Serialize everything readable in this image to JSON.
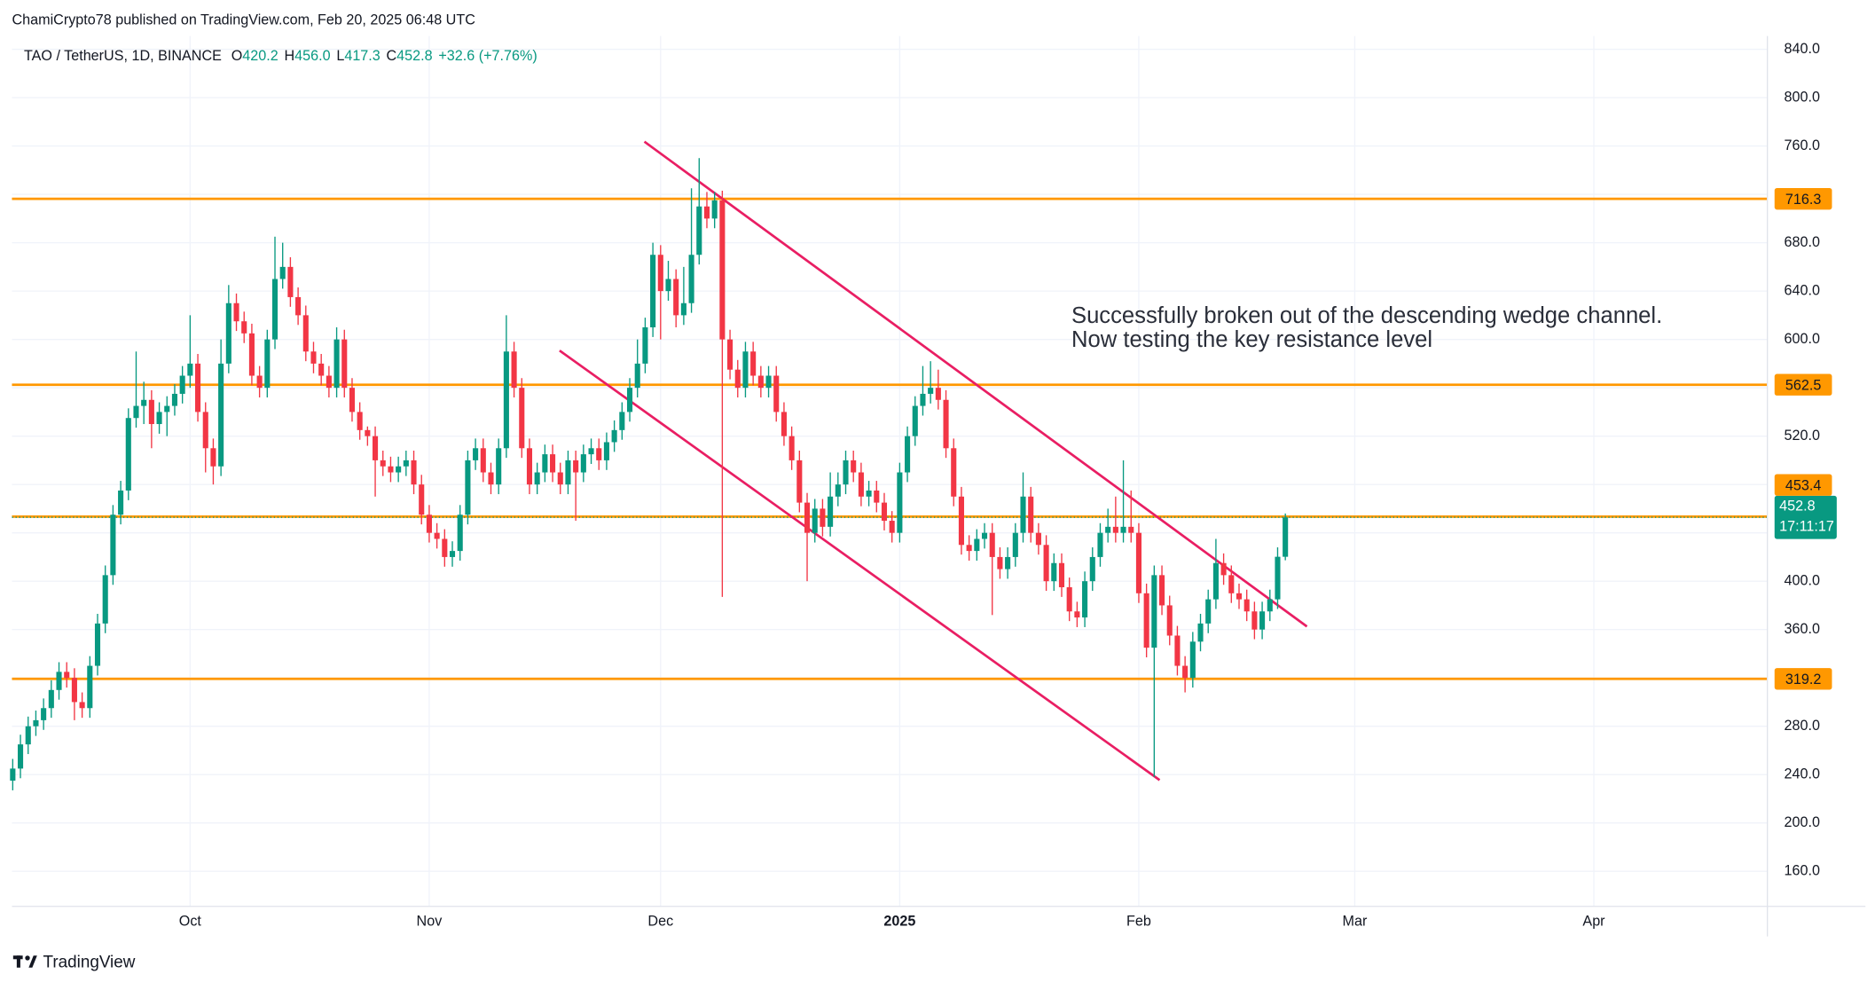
{
  "header": {
    "publisher": "ChamiCrypto78 published on TradingView.com, Feb 20, 2025 06:48 UTC"
  },
  "footer": {
    "brand": "TradingView"
  },
  "chart_data": {
    "type": "candlestick",
    "symbol": "TAO / TetherUS, 1D, BINANCE",
    "legend": [
      {
        "key": "O",
        "value": "420.2"
      },
      {
        "key": "H",
        "value": "456.0"
      },
      {
        "key": "L",
        "value": "417.3"
      },
      {
        "key": "C",
        "value": "452.8"
      }
    ],
    "change": "+32.6 (+7.76%)",
    "legend_position": "top-left",
    "annotation": [
      "Successfully broken out of the descending wedge channel.",
      "Now testing the key resistance level"
    ],
    "up_color": "#089981",
    "down_color": "#f23645",
    "grid": true,
    "xlim": [
      -0.1,
      227.5
    ],
    "xticks": [
      {
        "value": 23,
        "label": "Oct"
      },
      {
        "value": 54,
        "label": "Nov"
      },
      {
        "value": 84,
        "label": "Dec"
      },
      {
        "value": 115,
        "label": "2025"
      },
      {
        "value": 146,
        "label": "Feb"
      },
      {
        "value": 174,
        "label": "Mar"
      },
      {
        "value": 205,
        "label": "Apr"
      }
    ],
    "ylim": [
      131,
      851
    ],
    "yticks": [
      {
        "value": 160,
        "label": "160.0"
      },
      {
        "value": 200,
        "label": "200.0"
      },
      {
        "value": 240,
        "label": "240.0"
      },
      {
        "value": 280,
        "label": "280.0"
      },
      {
        "value": 320,
        "label": "320.0"
      },
      {
        "value": 360,
        "label": "360.0"
      },
      {
        "value": 400,
        "label": "400.0"
      },
      {
        "value": 440,
        "label": "440.0"
      },
      {
        "value": 480,
        "label": "480.0"
      },
      {
        "value": 520,
        "label": "520.0"
      },
      {
        "value": 560,
        "label": "560.0"
      },
      {
        "value": 600,
        "label": "600.0"
      },
      {
        "value": 640,
        "label": "640.0"
      },
      {
        "value": 680,
        "label": "680.0"
      },
      {
        "value": 720,
        "label": "720.0"
      },
      {
        "value": 760,
        "label": "760.0"
      },
      {
        "value": 800,
        "label": "800.0"
      },
      {
        "value": 840,
        "label": "840.0"
      }
    ],
    "levels": [
      {
        "value": 716.3,
        "color": "#ff9800"
      },
      {
        "value": 562.5,
        "color": "#ff9800"
      },
      {
        "value": 453.4,
        "color": "#ff9800"
      },
      {
        "value": 319.2,
        "color": "#ff9800"
      }
    ],
    "last_price": {
      "value": 452.8,
      "countdown": "17:11:17",
      "color": "#089981"
    },
    "trendlines": [
      {
        "points": [
          [
            81.9,
            763.6
          ],
          [
            167.8,
            362.5
          ]
        ],
        "color": "#e91e63"
      },
      {
        "points": [
          [
            70.9,
            590.8
          ],
          [
            148.7,
            235.5
          ]
        ],
        "color": "#e91e63"
      }
    ],
    "x": [
      0,
      1,
      2,
      3,
      4,
      5,
      6,
      7,
      8,
      9,
      10,
      11,
      12,
      13,
      14,
      15,
      16,
      17,
      18,
      19,
      20,
      21,
      22,
      23,
      24,
      25,
      26,
      27,
      28,
      29,
      30,
      31,
      32,
      33,
      34,
      35,
      36,
      37,
      38,
      39,
      40,
      41,
      42,
      43,
      44,
      45,
      46,
      47,
      48,
      49,
      50,
      51,
      52,
      53,
      54,
      55,
      56,
      57,
      58,
      59,
      60,
      61,
      62,
      63,
      64,
      65,
      66,
      67,
      68,
      69,
      70,
      71,
      72,
      73,
      74,
      75,
      76,
      77,
      78,
      79,
      80,
      81,
      82,
      83,
      84,
      85,
      86,
      87,
      88,
      89,
      90,
      91,
      92,
      93,
      94,
      95,
      96,
      97,
      98,
      99,
      100,
      101,
      102,
      103,
      104,
      105,
      106,
      107,
      108,
      109,
      110,
      111,
      112,
      113,
      114,
      115,
      116,
      117,
      118,
      119,
      120,
      121,
      122,
      123,
      124,
      125,
      126,
      127,
      128,
      129,
      130,
      131,
      132,
      133,
      134,
      135,
      136,
      137,
      138,
      139,
      140,
      141,
      142,
      143,
      144,
      145,
      146,
      147,
      148,
      149,
      150,
      151,
      152,
      153,
      154,
      155,
      156,
      157,
      158,
      159,
      160,
      161,
      162,
      163,
      164,
      165
    ],
    "open": [
      235,
      245,
      265,
      280,
      285,
      295,
      310,
      325,
      320,
      300,
      295,
      330,
      365,
      405,
      455,
      475,
      535,
      545,
      550,
      530,
      540,
      545,
      555,
      570,
      580,
      540,
      510,
      495,
      580,
      630,
      615,
      605,
      570,
      560,
      600,
      650,
      660,
      635,
      620,
      590,
      580,
      570,
      560,
      600,
      560,
      540,
      525,
      520,
      500,
      495,
      490,
      495,
      500,
      480,
      455,
      440,
      435,
      420,
      425,
      455,
      500,
      510,
      490,
      480,
      510,
      590,
      560,
      510,
      480,
      490,
      505,
      490,
      480,
      500,
      490,
      505,
      510,
      500,
      515,
      525,
      540,
      560,
      580,
      610,
      670,
      640,
      650,
      620,
      630,
      670,
      710,
      700,
      715,
      600,
      575,
      560,
      590,
      570,
      560,
      570,
      540,
      520,
      500,
      465,
      440,
      460,
      445,
      470,
      480,
      500,
      490,
      470,
      475,
      465,
      450,
      440,
      490,
      520,
      545,
      555,
      560,
      550,
      510,
      470,
      430,
      425,
      435,
      440,
      420,
      410,
      420,
      440,
      470,
      440,
      430,
      400,
      415,
      395,
      375,
      370,
      400,
      420,
      440,
      445,
      440,
      445,
      440,
      390,
      345,
      405,
      380,
      355,
      330,
      320,
      350,
      365,
      385,
      415,
      405,
      390,
      385,
      375,
      360,
      375,
      385,
      420.2
    ],
    "high": [
      253,
      273,
      288,
      293,
      303,
      318,
      333,
      333,
      328,
      308,
      338,
      373,
      413,
      463,
      483,
      543,
      590,
      565,
      558,
      548,
      553,
      563,
      578,
      620,
      588,
      548,
      518,
      600,
      645,
      638,
      623,
      613,
      578,
      608,
      685,
      680,
      668,
      643,
      628,
      598,
      588,
      578,
      610,
      608,
      568,
      548,
      528,
      528,
      508,
      503,
      503,
      508,
      508,
      488,
      463,
      448,
      443,
      433,
      463,
      508,
      518,
      518,
      498,
      518,
      620,
      598,
      568,
      518,
      498,
      513,
      513,
      498,
      508,
      508,
      513,
      518,
      518,
      523,
      533,
      548,
      568,
      600,
      618,
      680,
      678,
      665,
      658,
      660,
      725,
      750,
      722,
      722,
      723,
      608,
      583,
      598,
      598,
      578,
      578,
      578,
      548,
      528,
      508,
      473,
      468,
      468,
      490,
      490,
      508,
      508,
      498,
      483,
      483,
      473,
      458,
      498,
      528,
      553,
      578,
      582,
      575,
      558,
      518,
      478,
      438,
      443,
      448,
      448,
      428,
      428,
      448,
      490,
      478,
      448,
      438,
      423,
      423,
      403,
      383,
      408,
      428,
      448,
      460,
      470,
      500,
      475,
      448,
      398,
      413,
      413,
      388,
      363,
      338,
      358,
      373,
      393,
      435,
      423,
      413,
      398,
      393,
      383,
      383,
      393,
      428,
      456
    ],
    "low": [
      227,
      237,
      257,
      272,
      277,
      287,
      302,
      312,
      285,
      287,
      287,
      322,
      357,
      397,
      447,
      467,
      527,
      530,
      510,
      522,
      520,
      537,
      547,
      560,
      532,
      490,
      480,
      487,
      572,
      607,
      597,
      562,
      552,
      552,
      592,
      642,
      627,
      612,
      582,
      572,
      562,
      552,
      552,
      552,
      532,
      517,
      512,
      470,
      487,
      482,
      482,
      487,
      472,
      447,
      432,
      427,
      412,
      412,
      417,
      447,
      492,
      482,
      472,
      472,
      502,
      552,
      502,
      472,
      472,
      482,
      482,
      472,
      472,
      450,
      482,
      497,
      492,
      492,
      507,
      517,
      532,
      552,
      572,
      602,
      600,
      632,
      610,
      612,
      622,
      662,
      692,
      692,
      387,
      567,
      552,
      552,
      562,
      552,
      552,
      532,
      512,
      492,
      457,
      400,
      432,
      437,
      437,
      462,
      472,
      482,
      462,
      462,
      457,
      442,
      432,
      432,
      482,
      512,
      537,
      547,
      542,
      502,
      462,
      422,
      417,
      417,
      427,
      372,
      402,
      402,
      412,
      432,
      432,
      422,
      392,
      392,
      387,
      367,
      362,
      362,
      392,
      412,
      432,
      432,
      432,
      432,
      382,
      337,
      238,
      372,
      347,
      322,
      308,
      312,
      342,
      357,
      377,
      397,
      382,
      377,
      367,
      352,
      352,
      367,
      377,
      417.3
    ],
    "close": [
      245,
      265,
      280,
      285,
      295,
      310,
      325,
      320,
      300,
      295,
      330,
      365,
      405,
      455,
      475,
      535,
      545,
      550,
      530,
      540,
      545,
      555,
      570,
      580,
      540,
      510,
      495,
      580,
      630,
      615,
      605,
      570,
      560,
      600,
      650,
      660,
      635,
      620,
      590,
      580,
      570,
      560,
      600,
      560,
      540,
      525,
      520,
      500,
      495,
      490,
      495,
      500,
      480,
      455,
      440,
      435,
      420,
      425,
      455,
      500,
      510,
      490,
      480,
      510,
      590,
      560,
      510,
      480,
      490,
      505,
      490,
      480,
      500,
      490,
      505,
      510,
      500,
      515,
      525,
      540,
      560,
      580,
      610,
      670,
      640,
      650,
      620,
      630,
      670,
      710,
      700,
      715,
      600,
      575,
      560,
      590,
      570,
      560,
      570,
      540,
      520,
      500,
      465,
      440,
      460,
      445,
      470,
      480,
      500,
      490,
      470,
      475,
      465,
      450,
      440,
      490,
      520,
      545,
      555,
      560,
      550,
      510,
      470,
      430,
      425,
      435,
      440,
      420,
      410,
      420,
      440,
      470,
      440,
      430,
      400,
      415,
      395,
      375,
      370,
      400,
      420,
      440,
      445,
      440,
      445,
      440,
      390,
      345,
      405,
      380,
      355,
      330,
      320,
      350,
      365,
      385,
      415,
      405,
      390,
      385,
      375,
      360,
      375,
      385,
      420.2,
      452.8
    ]
  }
}
